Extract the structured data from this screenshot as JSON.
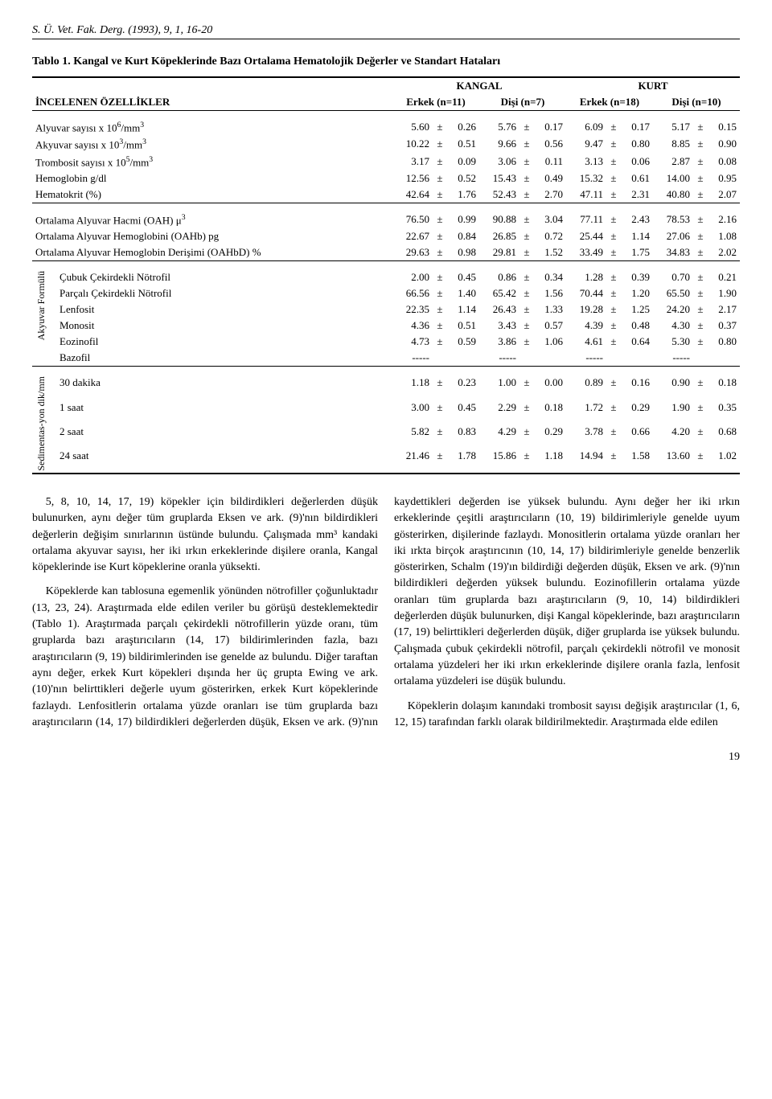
{
  "citation": "S. Ü. Vet. Fak. Derg. (1993), 9, 1, 16-20",
  "table_caption": "Tablo 1. Kangal ve Kurt Köpeklerinde Bazı Ortalama Hematolojik Değerler ve Standart Hataları",
  "group_headers": {
    "k": "KANGAL",
    "t": "KURT"
  },
  "col_headers": {
    "prop": "İNCELENEN ÖZELLİKLER",
    "ke": "Erkek (n=11)",
    "kd": "Dişi (n=7)",
    "te": "Erkek (n=18)",
    "td": "Dişi (n=10)"
  },
  "section1": [
    {
      "label": "Alyuvar sayısı x 10<sup>6</sup>/mm<sup>3</sup>",
      "ke": [
        "5.60",
        "0.26"
      ],
      "kd": [
        "5.76",
        "0.17"
      ],
      "te": [
        "6.09",
        "0.17"
      ],
      "td": [
        "5.17",
        "0.15"
      ]
    },
    {
      "label": "Akyuvar sayısı x 10<sup>3</sup>/mm<sup>3</sup>",
      "ke": [
        "10.22",
        "0.51"
      ],
      "kd": [
        "9.66",
        "0.56"
      ],
      "te": [
        "9.47",
        "0.80"
      ],
      "td": [
        "8.85",
        "0.90"
      ]
    },
    {
      "label": "Trombosit sayısı x 10<sup>5</sup>/mm<sup>3</sup>",
      "ke": [
        "3.17",
        "0.09"
      ],
      "kd": [
        "3.06",
        "0.11"
      ],
      "te": [
        "3.13",
        "0.06"
      ],
      "td": [
        "2.87",
        "0.08"
      ]
    },
    {
      "label": "Hemoglobin g/dl",
      "ke": [
        "12.56",
        "0.52"
      ],
      "kd": [
        "15.43",
        "0.49"
      ],
      "te": [
        "15.32",
        "0.61"
      ],
      "td": [
        "14.00",
        "0.95"
      ]
    },
    {
      "label": "Hematokrit (%)",
      "ke": [
        "42.64",
        "1.76"
      ],
      "kd": [
        "52.43",
        "2.70"
      ],
      "te": [
        "47.11",
        "2.31"
      ],
      "td": [
        "40.80",
        "2.07"
      ]
    }
  ],
  "section2": [
    {
      "label": "Ortalama Alyuvar Hacmi (OAH) μ<sup>3</sup>",
      "ke": [
        "76.50",
        "0.99"
      ],
      "kd": [
        "90.88",
        "3.04"
      ],
      "te": [
        "77.11",
        "2.43"
      ],
      "td": [
        "78.53",
        "2.16"
      ]
    },
    {
      "label": "Ortalama Alyuvar Hemoglobini (OAHb) pg",
      "ke": [
        "22.67",
        "0.84"
      ],
      "kd": [
        "26.85",
        "0.72"
      ],
      "te": [
        "25.44",
        "1.14"
      ],
      "td": [
        "27.06",
        "1.08"
      ]
    },
    {
      "label": "Ortalama Alyuvar Hemoglobin Derişimi (OAHbD) %",
      "ke": [
        "29.63",
        "0.98"
      ],
      "kd": [
        "29.81",
        "1.52"
      ],
      "te": [
        "33.49",
        "1.75"
      ],
      "td": [
        "34.83",
        "2.02"
      ]
    }
  ],
  "section3_vlabel": "Akyuvar Formülü",
  "section3": [
    {
      "label": "Çubuk Çekirdekli Nötrofil",
      "ke": [
        "2.00",
        "0.45"
      ],
      "kd": [
        "0.86",
        "0.34"
      ],
      "te": [
        "1.28",
        "0.39"
      ],
      "td": [
        "0.70",
        "0.21"
      ]
    },
    {
      "label": "Parçalı Çekirdekli Nötrofil",
      "ke": [
        "66.56",
        "1.40"
      ],
      "kd": [
        "65.42",
        "1.56"
      ],
      "te": [
        "70.44",
        "1.20"
      ],
      "td": [
        "65.50",
        "1.90"
      ]
    },
    {
      "label": "Lenfosit",
      "ke": [
        "22.35",
        "1.14"
      ],
      "kd": [
        "26.43",
        "1.33"
      ],
      "te": [
        "19.28",
        "1.25"
      ],
      "td": [
        "24.20",
        "2.17"
      ]
    },
    {
      "label": "Monosit",
      "ke": [
        "4.36",
        "0.51"
      ],
      "kd": [
        "3.43",
        "0.57"
      ],
      "te": [
        "4.39",
        "0.48"
      ],
      "td": [
        "4.30",
        "0.37"
      ]
    },
    {
      "label": "Eozinofil",
      "ke": [
        "4.73",
        "0.59"
      ],
      "kd": [
        "3.86",
        "1.06"
      ],
      "te": [
        "4.61",
        "0.64"
      ],
      "td": [
        "5.30",
        "0.80"
      ]
    },
    {
      "label": "Bazofil",
      "ke": [
        "-----",
        ""
      ],
      "kd": [
        "-----",
        ""
      ],
      "te": [
        "-----",
        ""
      ],
      "td": [
        "-----",
        ""
      ]
    }
  ],
  "section4_vlabel": "Sedimentas-yon dik/mm",
  "section4": [
    {
      "label": "30 dakika",
      "ke": [
        "1.18",
        "0.23"
      ],
      "kd": [
        "1.00",
        "0.00"
      ],
      "te": [
        "0.89",
        "0.16"
      ],
      "td": [
        "0.90",
        "0.18"
      ]
    },
    {
      "label": "1 saat",
      "ke": [
        "3.00",
        "0.45"
      ],
      "kd": [
        "2.29",
        "0.18"
      ],
      "te": [
        "1.72",
        "0.29"
      ],
      "td": [
        "1.90",
        "0.35"
      ]
    },
    {
      "label": "2 saat",
      "ke": [
        "5.82",
        "0.83"
      ],
      "kd": [
        "4.29",
        "0.29"
      ],
      "te": [
        "3.78",
        "0.66"
      ],
      "td": [
        "4.20",
        "0.68"
      ]
    },
    {
      "label": "24 saat",
      "ke": [
        "21.46",
        "1.78"
      ],
      "kd": [
        "15.86",
        "1.18"
      ],
      "te": [
        "14.94",
        "1.58"
      ],
      "td": [
        "13.60",
        "1.02"
      ]
    }
  ],
  "body": {
    "p1": "5, 8, 10, 14, 17, 19) köpekler için bildirdikleri değerlerden düşük bulunurken, aynı değer tüm gruplarda Eksen ve ark. (9)'nın bildirdikleri değerlerin değişim sınırlarının üstünde bulundu. Çalışmada mm³ kandaki ortalama akyuvar sayısı, her iki ırkın erkeklerinde dişilere oranla, Kangal köpeklerinde ise Kurt köpeklerine oranla yüksekti.",
    "p2": "Köpeklerde kan tablosuna egemenlik yönünden nötrofiller çoğunluktadır (13, 23, 24). Araştırmada elde edilen veriler bu görüşü desteklemektedir (Tablo 1). Araştırmada parçalı çekirdekli nötrofillerin yüzde oranı, tüm gruplarda bazı araştırıcıların (14, 17) bildirimlerinden fazla, bazı araştırıcıların (9, 19) bildirimlerinden ise genelde az bulundu. Diğer taraftan aynı değer, erkek Kurt köpekleri dışında her üç grupta Ewing ve ark. (10)'nın belirttikleri değerle uyum gösterirken, erkek Kurt köpeklerinde fazlaydı. Lenfositlerin ortalama yüzde oranları ise tüm gruplarda bazı araştırıcıların (14, 17) bildirdikleri değerlerden düşük, Eksen ve ark. (9)'nın kaydettikleri değerden ise yüksek bulundu. Aynı değer her iki ırkın erkeklerinde çeşitli araştırıcıların (10, 19) bildirimleriyle genelde uyum gösterirken, dişilerinde fazlaydı. Monositlerin ortalama yüzde oranları her iki ırkta birçok araştırıcının (10, 14, 17) bildirimleriyle genelde benzerlik gösterirken, Schalm (19)'ın bildirdiği değerden düşük, Eksen ve ark. (9)'nın bildirdikleri değerden yüksek bulundu. Eozinofillerin ortalama yüzde oranları tüm gruplarda bazı araştırıcıların (9, 10, 14) bildirdikleri değerlerden düşük bulunurken, dişi Kangal köpeklerinde, bazı araştırıcıların (17, 19) belirttikleri değerlerden düşük, diğer gruplarda ise yüksek bulundu. Çalışmada çubuk çekirdekli nötrofil, parçalı çekirdekli nötrofil ve monosit ortalama yüzdeleri her iki ırkın erkeklerinde dişilere oranla fazla, lenfosit ortalama yüzdeleri ise düşük bulundu.",
    "p3": "Köpeklerin dolaşım kanındaki trombosit sayısı değişik araştırıcılar (1, 6, 12, 15) tarafından farklı olarak bildirilmektedir. Araştırmada elde edilen"
  },
  "page_number": "19",
  "pm_symbol": "±"
}
